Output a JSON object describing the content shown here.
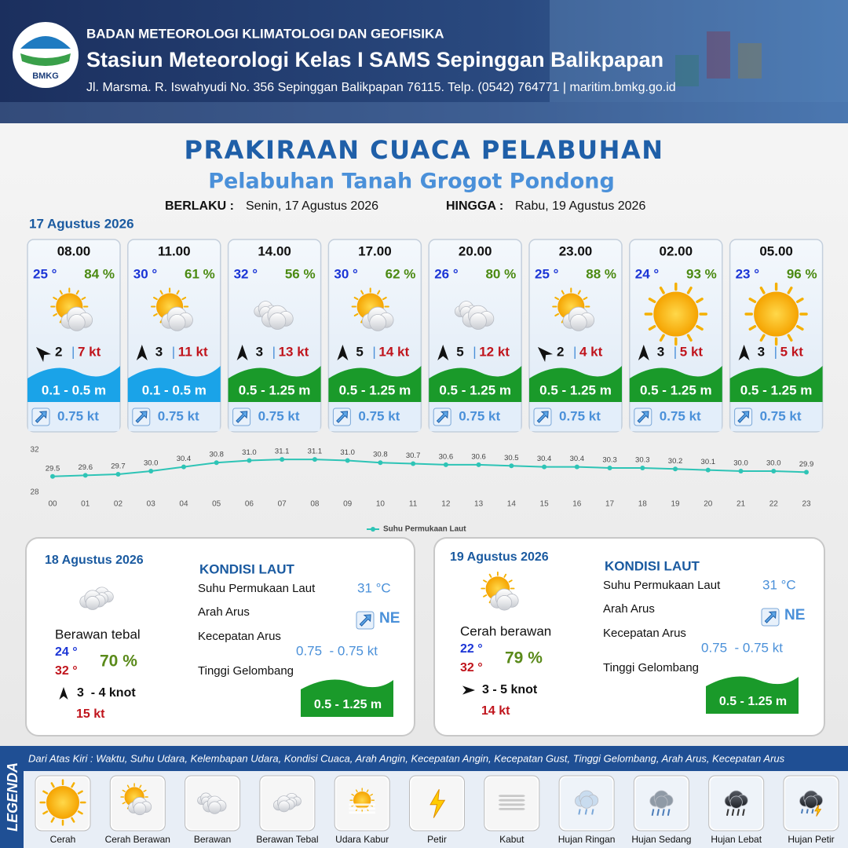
{
  "header": {
    "logo": "BMKG",
    "agency": "BADAN METEOROLOGI KLIMATOLOGI DAN GEOFISIKA",
    "station": "Stasiun Meteorologi Kelas I SAMS Sepinggan Balikpapan",
    "address": "Jl. Marsma. R. Iswahyudi No. 356 Sepinggan Balikpapan 76115. Telp. (0542) 764771 | maritim.bmkg.go.id"
  },
  "title": "PRAKIRAAN CUACA PELABUHAN",
  "subtitle": "Pelabuhan Tanah Grogot Pondong",
  "validity": {
    "from_label": "BERLAKU :",
    "from": "Senin, 17 Agustus 2026",
    "to_label": "HINGGA :",
    "to": "Rabu, 19 Agustus 2026"
  },
  "day1_date": "17 Agustus 2026",
  "cards": [
    {
      "time": "08.00",
      "temp": "25 °",
      "humidity": "84 %",
      "wind": 2,
      "gust": "7 kt",
      "wave": "0.1 - 0.5 m",
      "current": "0.75 kt"
    },
    {
      "time": "11.00",
      "temp": "30 °",
      "humidity": "61 %",
      "wind": 3,
      "gust": "11 kt",
      "wave": "0.1 - 0.5 m",
      "current": "0.75 kt"
    },
    {
      "time": "14.00",
      "temp": "32 °",
      "humidity": "56 %",
      "wind": 3,
      "gust": "13 kt",
      "wave": "0.5 - 1.25 m",
      "current": "0.75 kt"
    },
    {
      "time": "17.00",
      "temp": "30 °",
      "humidity": "62 %",
      "wind": 5,
      "gust": "14 kt",
      "wave": "0.5 - 1.25 m",
      "current": "0.75 kt"
    },
    {
      "time": "20.00",
      "temp": "26 °",
      "humidity": "80 %",
      "wind": 5,
      "gust": "12 kt",
      "wave": "0.5 - 1.25 m",
      "current": "0.75 kt"
    },
    {
      "time": "23.00",
      "temp": "25 °",
      "humidity": "88 %",
      "wind": 2,
      "gust": "4 kt",
      "wave": "0.5 - 1.25 m",
      "current": "0.75 kt"
    },
    {
      "time": "02.00",
      "temp": "24 °",
      "humidity": "93 %",
      "wind": 3,
      "gust": "5 kt",
      "wave": "0.5 - 1.25 m",
      "current": "0.75 kt"
    },
    {
      "time": "05.00",
      "temp": "23 °",
      "humidity": "96 %",
      "wind": 3,
      "gust": "5 kt",
      "wave": "0.5 - 1.25 m",
      "current": "0.75 kt"
    }
  ],
  "chart_data": {
    "type": "line",
    "categories": [
      "00",
      "01",
      "02",
      "03",
      "04",
      "05",
      "06",
      "07",
      "08",
      "09",
      "10",
      "11",
      "12",
      "13",
      "14",
      "15",
      "16",
      "17",
      "18",
      "19",
      "20",
      "21",
      "22",
      "23"
    ],
    "series": [
      {
        "name": "Suhu Permukaan Laut",
        "color": "#2ec4b6",
        "values": [
          29.5,
          29.6,
          29.7,
          30.0,
          30.4,
          30.8,
          31.0,
          31.1,
          31.1,
          31.0,
          30.8,
          30.7,
          30.6,
          30.6,
          30.5,
          30.4,
          30.4,
          30.3,
          30.3,
          30.2,
          30.1,
          30.0,
          30.0,
          29.9
        ],
        "value_labels": [
          "29.5",
          "29.6",
          "29.7",
          "30.0",
          "30.4",
          "30.8",
          "31.0",
          "31.1",
          "31.1",
          "31.0",
          "30.8",
          "30.7",
          "30.6",
          "30.6",
          "30.5",
          "30.4",
          "30.4",
          "30.3",
          "30.3",
          "30.2",
          "30.1",
          "30.0",
          "30.0",
          "29.9"
        ]
      }
    ],
    "ylim": [
      28,
      32
    ],
    "yticks": [
      28,
      32
    ],
    "legend": "bottom"
  },
  "days": [
    {
      "date": "18 Agustus 2026",
      "condition": "Berawan tebal",
      "temp_min": "24 °",
      "temp_max": "32 °",
      "humidity": "70 %",
      "wind": "3  - 4 knot",
      "gust": "15 kt",
      "sea_title": "KONDISI LAUT",
      "sst_label": "Suhu Permukaan Laut",
      "sst": "31 °C",
      "dir_label": "Arah Arus",
      "dir": "NE",
      "speed_label": "Kecepatan Arus",
      "speed": "0.75  - 0.75 kt",
      "wave_label": "Tinggi Gelombang",
      "wave": "0.5 - 1.25 m"
    },
    {
      "date": "19 Agustus 2026",
      "condition": "Cerah berawan",
      "temp_min": "22 °",
      "temp_max": "32 °",
      "humidity": "79 %",
      "wind": "3 - 5 knot",
      "gust": "14 kt",
      "sea_title": "KONDISI LAUT",
      "sst_label": "Suhu Permukaan Laut",
      "sst": "31 °C",
      "dir_label": "Arah Arus",
      "dir": "NE",
      "speed_label": "Kecepatan Arus",
      "speed": "0.75  - 0.75 kt",
      "wave_label": "Tinggi Gelombang",
      "wave": "0.5 - 1.25 m"
    }
  ],
  "legend": {
    "title": "LEGENDA",
    "description": "Dari Atas Kiri : Waktu, Suhu Udara, Kelembapan Udara, Kondisi Cuaca, Arah Angin, Kecepatan Angin, Kecepatan Gust, Tinggi Gelombang, Arah Arus, Kecepatan Arus",
    "items": [
      "Cerah",
      "Cerah Berawan",
      "Berawan",
      "Berawan Tebal",
      "Udara Kabur",
      "Petir",
      "Kabut",
      "Hujan Ringan",
      "Hujan Sedang",
      "Hujan Lebat",
      "Hujan Petir"
    ]
  }
}
